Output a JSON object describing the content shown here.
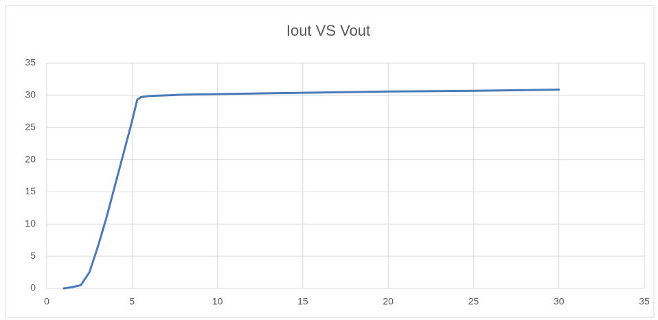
{
  "chart_data": {
    "type": "line",
    "title": "Iout VS Vout",
    "x": [
      1,
      1.5,
      2,
      2.5,
      3,
      3.5,
      4,
      4.5,
      5,
      5.3,
      5.5,
      6,
      7,
      8,
      10,
      15,
      20,
      25,
      30
    ],
    "values": [
      0,
      0.2,
      0.5,
      2.5,
      6.5,
      11,
      16,
      21,
      26,
      29.3,
      29.7,
      29.9,
      30.0,
      30.1,
      30.2,
      30.4,
      30.6,
      30.7,
      30.9
    ],
    "color": "#4a7ab8",
    "xlim": [
      0,
      35
    ],
    "xticks": [
      0,
      5,
      10,
      15,
      20,
      25,
      30,
      35
    ],
    "ylim": [
      0,
      35
    ],
    "yticks": [
      0,
      5,
      10,
      15,
      20,
      25,
      30,
      35
    ],
    "grid": true
  }
}
